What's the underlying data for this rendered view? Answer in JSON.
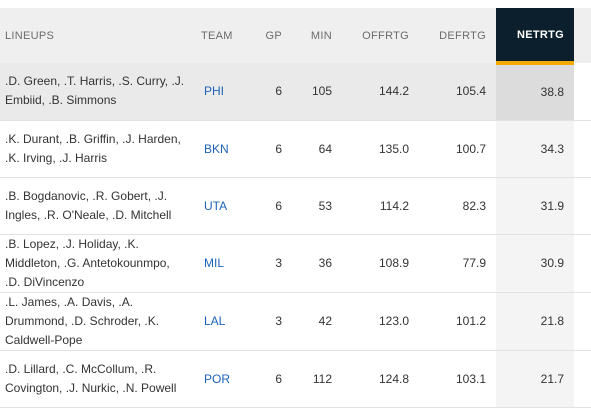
{
  "table": {
    "headers": {
      "lineups": "LINEUPS",
      "team": "TEAM",
      "gp": "GP",
      "min": "MIN",
      "offrtg": "OFFRTG",
      "defrtg": "DEFRTG",
      "netrtg": "NETRTG"
    },
    "rows": [
      {
        "lineup": ".D. Green, .T. Harris, .S. Curry, .J. Embiid, .B. Simmons",
        "team": "PHI",
        "gp": "6",
        "min": "105",
        "offrtg": "144.2",
        "defrtg": "105.4",
        "netrtg": "38.8"
      },
      {
        "lineup": ".K. Durant, .B. Griffin, .J. Harden, .K. Irving, .J. Harris",
        "team": "BKN",
        "gp": "6",
        "min": "64",
        "offrtg": "135.0",
        "defrtg": "100.7",
        "netrtg": "34.3"
      },
      {
        "lineup": ".B. Bogdanovic, .R. Gobert, .J. Ingles, .R. O'Neale, .D. Mitchell",
        "team": "UTA",
        "gp": "6",
        "min": "53",
        "offrtg": "114.2",
        "defrtg": "82.3",
        "netrtg": "31.9"
      },
      {
        "lineup": ".B. Lopez, .J. Holiday, .K. Middleton, .G. Antetokounmpo, .D. DiVincenzo",
        "team": "MIL",
        "gp": "3",
        "min": "36",
        "offrtg": "108.9",
        "defrtg": "77.9",
        "netrtg": "30.9"
      },
      {
        "lineup": ".L. James, .A. Davis, .A. Drummond, .D. Schroder, .K. Caldwell-Pope",
        "team": "LAL",
        "gp": "3",
        "min": "42",
        "offrtg": "123.0",
        "defrtg": "101.2",
        "netrtg": "21.8"
      },
      {
        "lineup": ".D. Lillard, .C. McCollum, .R. Covington, .J. Nurkic, .N. Powell",
        "team": "POR",
        "gp": "6",
        "min": "112",
        "offrtg": "124.8",
        "defrtg": "103.1",
        "netrtg": "21.7"
      }
    ]
  },
  "colors": {
    "header_bg": "#efefef",
    "sorted_header_bg": "#0b1f2d",
    "sorted_header_accent": "#f2a900",
    "team_link": "#1d63b8"
  }
}
